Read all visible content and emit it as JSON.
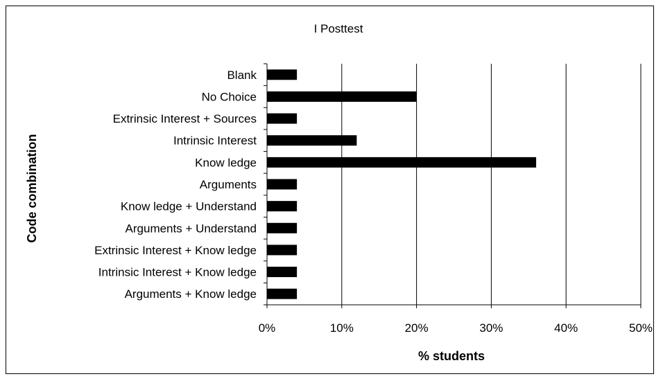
{
  "chart_data": {
    "type": "bar",
    "orientation": "horizontal",
    "title": "I Posttest",
    "xlabel": "% students",
    "ylabel": "Code combination",
    "categories": [
      "Blank",
      "No Choice",
      "Extrinsic Interest + Sources",
      "Intrinsic Interest",
      "Know ledge",
      "Arguments",
      "Know ledge + Understand",
      "Arguments + Understand",
      "Extrinsic Interest + Know ledge",
      "Intrinsic Interest + Know ledge",
      "Arguments + Know ledge"
    ],
    "values": [
      4,
      20,
      4,
      12,
      36,
      4,
      4,
      4,
      4,
      4,
      4
    ],
    "xlim": [
      0,
      50
    ],
    "xticks": [
      "0%",
      "10%",
      "20%",
      "30%",
      "40%",
      "50%"
    ],
    "grid": "vertical",
    "legend": "none",
    "bar_color": "#000000"
  }
}
